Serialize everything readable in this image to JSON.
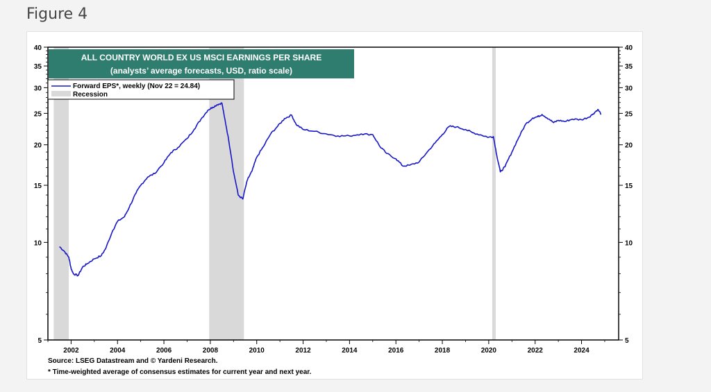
{
  "page": {
    "heading": "Figure 4"
  },
  "colors": {
    "series": "#1515c8",
    "recession": "#d9d9d9",
    "title_bg": "#2e7d6e",
    "title_text": "#ffffff"
  },
  "chart_data": {
    "type": "line",
    "title": "ALL COUNTRY WORLD EX US MSCI EARNINGS PER SHARE",
    "subtitle": "(analysts’ average forecasts, USD, ratio scale)",
    "y_scale": "log",
    "ylim": [
      5,
      40
    ],
    "xlim": [
      2001.0,
      2025.6
    ],
    "y_ticks": [
      "5",
      "10",
      "15",
      "20",
      "25",
      "30",
      "35",
      "40"
    ],
    "x_ticks": [
      "2002",
      "2004",
      "2006",
      "2008",
      "2010",
      "2012",
      "2014",
      "2016",
      "2018",
      "2020",
      "2022",
      "2024"
    ],
    "legend_placement": "top-left",
    "legend": {
      "series_label": "Forward EPS*, weekly (Nov 22 = 24.84)",
      "recession_label": "Recession"
    },
    "recessions": [
      [
        2001.25,
        2001.9
      ],
      [
        2007.95,
        2009.45
      ],
      [
        2020.15,
        2020.3
      ]
    ],
    "series": [
      {
        "name": "Forward EPS*, weekly (Nov 22 = 24.84)",
        "points": [
          [
            2001.5,
            9.7
          ],
          [
            2001.7,
            9.4
          ],
          [
            2001.9,
            9.0
          ],
          [
            2002.0,
            8.3
          ],
          [
            2002.1,
            8.0
          ],
          [
            2002.3,
            7.9
          ],
          [
            2002.5,
            8.4
          ],
          [
            2002.7,
            8.6
          ],
          [
            2003.0,
            8.9
          ],
          [
            2003.3,
            9.1
          ],
          [
            2003.5,
            9.6
          ],
          [
            2003.8,
            10.9
          ],
          [
            2004.0,
            11.6
          ],
          [
            2004.3,
            12.0
          ],
          [
            2004.5,
            12.8
          ],
          [
            2004.8,
            14.2
          ],
          [
            2005.0,
            15.0
          ],
          [
            2005.3,
            15.9
          ],
          [
            2005.6,
            16.3
          ],
          [
            2006.0,
            17.6
          ],
          [
            2006.3,
            18.9
          ],
          [
            2006.6,
            19.6
          ],
          [
            2007.0,
            20.9
          ],
          [
            2007.3,
            22.3
          ],
          [
            2007.6,
            24.0
          ],
          [
            2007.9,
            25.6
          ],
          [
            2008.1,
            26.1
          ],
          [
            2008.3,
            26.6
          ],
          [
            2008.5,
            26.9
          ],
          [
            2008.6,
            24.5
          ],
          [
            2008.8,
            20.5
          ],
          [
            2009.0,
            16.5
          ],
          [
            2009.2,
            14.0
          ],
          [
            2009.4,
            13.6
          ],
          [
            2009.6,
            15.6
          ],
          [
            2009.8,
            16.6
          ],
          [
            2010.0,
            18.3
          ],
          [
            2010.3,
            19.8
          ],
          [
            2010.6,
            21.6
          ],
          [
            2010.9,
            22.8
          ],
          [
            2011.2,
            24.1
          ],
          [
            2011.5,
            24.7
          ],
          [
            2011.7,
            23.1
          ],
          [
            2012.0,
            22.3
          ],
          [
            2012.5,
            22.0
          ],
          [
            2013.0,
            21.6
          ],
          [
            2013.5,
            21.3
          ],
          [
            2014.0,
            21.3
          ],
          [
            2014.5,
            21.6
          ],
          [
            2015.0,
            21.5
          ],
          [
            2015.3,
            19.8
          ],
          [
            2015.6,
            18.8
          ],
          [
            2016.0,
            18.1
          ],
          [
            2016.3,
            17.2
          ],
          [
            2016.6,
            17.3
          ],
          [
            2017.0,
            17.7
          ],
          [
            2017.3,
            18.8
          ],
          [
            2017.7,
            20.3
          ],
          [
            2018.0,
            21.5
          ],
          [
            2018.3,
            22.8
          ],
          [
            2018.6,
            22.7
          ],
          [
            2019.0,
            22.3
          ],
          [
            2019.3,
            21.8
          ],
          [
            2019.7,
            21.4
          ],
          [
            2020.0,
            21.1
          ],
          [
            2020.2,
            21.2
          ],
          [
            2020.35,
            18.5
          ],
          [
            2020.5,
            16.5
          ],
          [
            2020.7,
            17.1
          ],
          [
            2021.0,
            19.0
          ],
          [
            2021.3,
            21.1
          ],
          [
            2021.6,
            23.2
          ],
          [
            2021.9,
            24.2
          ],
          [
            2022.1,
            24.4
          ],
          [
            2022.3,
            24.8
          ],
          [
            2022.6,
            24.0
          ],
          [
            2022.8,
            23.4
          ],
          [
            2023.0,
            23.8
          ],
          [
            2023.3,
            23.6
          ],
          [
            2023.6,
            24.0
          ],
          [
            2024.0,
            23.9
          ],
          [
            2024.3,
            24.3
          ],
          [
            2024.5,
            24.9
          ],
          [
            2024.7,
            25.7
          ],
          [
            2024.85,
            24.84
          ]
        ]
      }
    ]
  },
  "footer": {
    "source": "Source: LSEG Datastream and © Yardeni Research.",
    "note": "* Time-weighted average of consensus estimates for current year and next year."
  }
}
